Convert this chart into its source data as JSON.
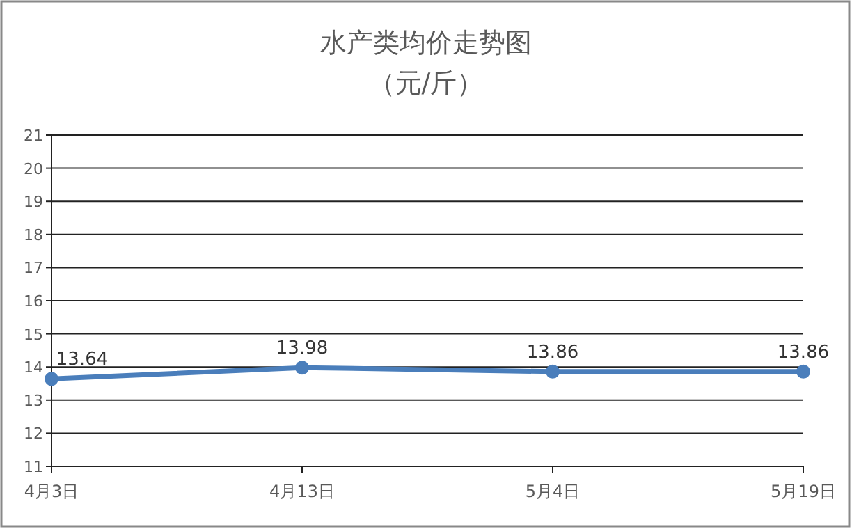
{
  "chart_data": {
    "type": "line",
    "title": "水产类均价走势图",
    "subtitle": "（元/斤）",
    "categories": [
      "4月3日",
      "4月13日",
      "5月4日",
      "5月19日"
    ],
    "series": [
      {
        "color": "#4a7ebb",
        "values": [
          13.64,
          13.98,
          13.86,
          13.86
        ]
      }
    ],
    "ylim": [
      11,
      21
    ],
    "yticks": [
      11,
      12,
      13,
      14,
      15,
      16,
      17,
      18,
      19,
      20,
      21
    ],
    "grid": "y",
    "marker": "circle",
    "line_style": "solid",
    "data_labels": true
  }
}
